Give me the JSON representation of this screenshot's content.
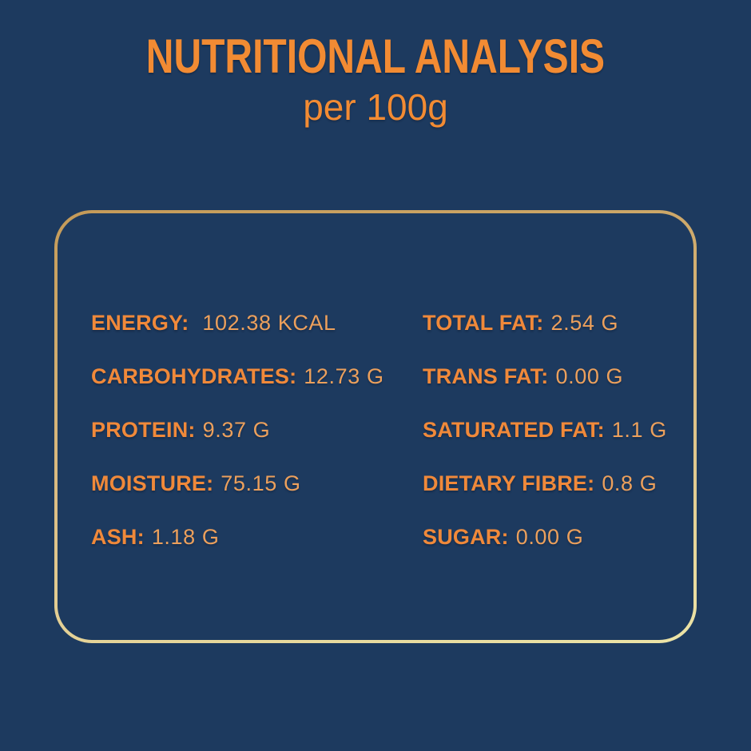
{
  "colors": {
    "background": "#1d3a5f",
    "title": "#f28b33",
    "label": "#f0893a",
    "value": "#eca05c",
    "border_gold_top": "#c49a58",
    "border_gold_mid": "#dcbe85",
    "border_gold_bottom": "#ece4a7"
  },
  "header": {
    "title": "NUTRITIONAL ANALYSIS",
    "subtitle": "per 100g"
  },
  "panel": {
    "left": [
      {
        "label": "ENERGY:",
        "value": "102.38 KCAL"
      },
      {
        "label": "CARBOHYDRATES:",
        "value": "12.73 G"
      },
      {
        "label": "PROTEIN:",
        "value": "9.37 G"
      },
      {
        "label": "MOISTURE:",
        "value": "75.15 G"
      },
      {
        "label": "ASH:",
        "value": "1.18 G"
      }
    ],
    "right": [
      {
        "label": "TOTAL FAT:",
        "value": "2.54 G"
      },
      {
        "label": "TRANS FAT:",
        "value": "0.00 G"
      },
      {
        "label": "SATURATED FAT:",
        "value": "1.1 G"
      },
      {
        "label": "DIETARY FIBRE:",
        "value": "0.8 G"
      },
      {
        "label": "SUGAR:",
        "value": "0.00 G"
      }
    ]
  }
}
